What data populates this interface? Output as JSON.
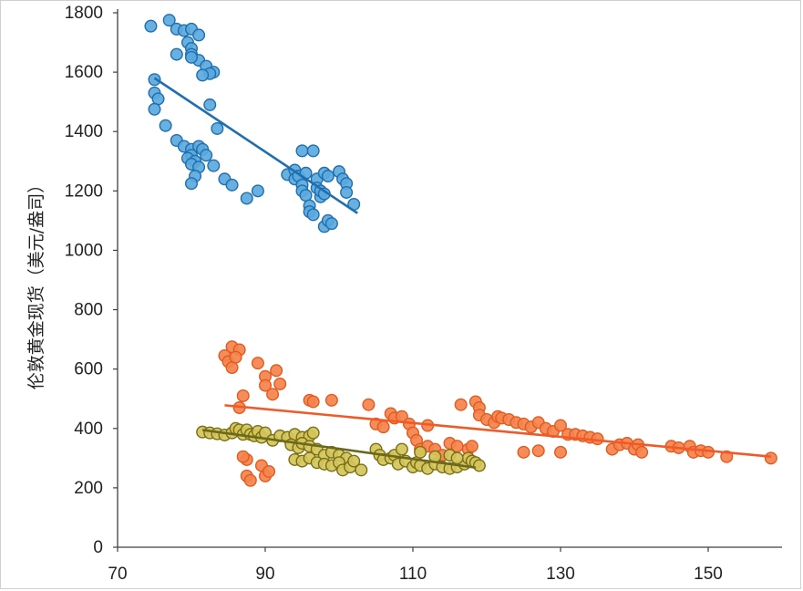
{
  "chart_data": {
    "type": "scatter",
    "title": "",
    "xlabel": "",
    "ylabel": "伦敦黄金现货（美元/盎司）",
    "xlim": [
      70,
      160
    ],
    "ylim": [
      0,
      1800
    ],
    "x_ticks": [
      "70",
      "90",
      "110",
      "130",
      "150"
    ],
    "y_ticks": [
      "0",
      "200",
      "400",
      "600",
      "800",
      "1000",
      "1200",
      "1400",
      "1600",
      "1800"
    ],
    "grid": false,
    "legend": "none",
    "series": [
      {
        "color": "#5aa9dd",
        "edge_color": "#1f6eb0",
        "trend_color": "#1f6eb0",
        "trendline": {
          "x": [
            75,
            102.5
          ],
          "y": [
            1580,
            1125
          ]
        },
        "points": [
          [
            74.5,
            1755
          ],
          [
            77,
            1775
          ],
          [
            78,
            1745
          ],
          [
            79,
            1740
          ],
          [
            80,
            1745
          ],
          [
            81,
            1725
          ],
          [
            79.5,
            1700
          ],
          [
            80,
            1680
          ],
          [
            78,
            1660
          ],
          [
            80,
            1660
          ],
          [
            81,
            1640
          ],
          [
            82,
            1620
          ],
          [
            83,
            1600
          ],
          [
            82.5,
            1595
          ],
          [
            81.5,
            1590
          ],
          [
            80,
            1650
          ],
          [
            75,
            1575
          ],
          [
            75,
            1530
          ],
          [
            75.5,
            1510
          ],
          [
            75,
            1475
          ],
          [
            76.5,
            1420
          ],
          [
            82.5,
            1490
          ],
          [
            83.5,
            1410
          ],
          [
            78,
            1370
          ],
          [
            79,
            1350
          ],
          [
            80,
            1340
          ],
          [
            81,
            1350
          ],
          [
            81.5,
            1340
          ],
          [
            80,
            1320
          ],
          [
            82,
            1320
          ],
          [
            79.5,
            1310
          ],
          [
            80.5,
            1300
          ],
          [
            80,
            1290
          ],
          [
            81,
            1280
          ],
          [
            83,
            1285
          ],
          [
            80.5,
            1250
          ],
          [
            80,
            1225
          ],
          [
            84.5,
            1240
          ],
          [
            85.5,
            1220
          ],
          [
            87.5,
            1175
          ],
          [
            89,
            1200
          ],
          [
            93,
            1255
          ],
          [
            94,
            1270
          ],
          [
            94,
            1240
          ],
          [
            94.5,
            1250
          ],
          [
            95,
            1220
          ],
          [
            95,
            1200
          ],
          [
            95,
            1335
          ],
          [
            96.5,
            1335
          ],
          [
            95.5,
            1185
          ],
          [
            96,
            1150
          ],
          [
            96,
            1130
          ],
          [
            96.5,
            1120
          ],
          [
            95.5,
            1260
          ],
          [
            97,
            1240
          ],
          [
            97,
            1210
          ],
          [
            97.5,
            1180
          ],
          [
            98,
            1260
          ],
          [
            98.5,
            1250
          ],
          [
            97.5,
            1200
          ],
          [
            98,
            1190
          ],
          [
            98,
            1080
          ],
          [
            98.5,
            1100
          ],
          [
            99,
            1090
          ],
          [
            100,
            1265
          ],
          [
            100.5,
            1240
          ],
          [
            101,
            1225
          ],
          [
            101,
            1195
          ],
          [
            102,
            1155
          ]
        ]
      },
      {
        "color": "#f4834c",
        "edge_color": "#e25a1f",
        "trend_color": "#f05a28",
        "trendline": {
          "x": [
            84.5,
            158.5
          ],
          "y": [
            478,
            305
          ]
        },
        "points": [
          [
            84.5,
            645
          ],
          [
            85.5,
            675
          ],
          [
            86.5,
            665
          ],
          [
            85,
            625
          ],
          [
            85.5,
            605
          ],
          [
            86,
            640
          ],
          [
            89,
            620
          ],
          [
            90,
            575
          ],
          [
            90,
            545
          ],
          [
            91.5,
            595
          ],
          [
            91,
            515
          ],
          [
            92,
            550
          ],
          [
            86.5,
            470
          ],
          [
            87,
            510
          ],
          [
            87.5,
            295
          ],
          [
            87,
            305
          ],
          [
            87.5,
            240
          ],
          [
            88,
            225
          ],
          [
            89.5,
            275
          ],
          [
            90,
            240
          ],
          [
            90.5,
            255
          ],
          [
            96,
            495
          ],
          [
            96.5,
            490
          ],
          [
            99,
            495
          ],
          [
            104,
            480
          ],
          [
            105,
            415
          ],
          [
            106,
            405
          ],
          [
            107,
            450
          ],
          [
            107.5,
            435
          ],
          [
            108.5,
            440
          ],
          [
            109.5,
            415
          ],
          [
            110,
            385
          ],
          [
            110.5,
            360
          ],
          [
            111,
            330
          ],
          [
            112,
            410
          ],
          [
            112,
            340
          ],
          [
            113,
            330
          ],
          [
            114,
            310
          ],
          [
            115,
            350
          ],
          [
            116,
            340
          ],
          [
            116.5,
            480
          ],
          [
            117.5,
            330
          ],
          [
            118,
            340
          ],
          [
            118.5,
            490
          ],
          [
            119,
            470
          ],
          [
            119,
            445
          ],
          [
            120,
            430
          ],
          [
            121,
            420
          ],
          [
            121.5,
            440
          ],
          [
            122,
            435
          ],
          [
            123,
            430
          ],
          [
            124,
            420
          ],
          [
            125,
            415
          ],
          [
            126,
            405
          ],
          [
            127,
            420
          ],
          [
            128,
            400
          ],
          [
            129,
            390
          ],
          [
            130,
            410
          ],
          [
            131,
            380
          ],
          [
            132,
            380
          ],
          [
            133,
            375
          ],
          [
            134,
            370
          ],
          [
            135,
            365
          ],
          [
            137,
            330
          ],
          [
            138,
            345
          ],
          [
            139,
            350
          ],
          [
            140,
            330
          ],
          [
            140.5,
            345
          ],
          [
            141,
            320
          ],
          [
            145,
            340
          ],
          [
            146,
            335
          ],
          [
            147.5,
            340
          ],
          [
            148,
            320
          ],
          [
            149,
            325
          ],
          [
            150,
            320
          ],
          [
            152.5,
            305
          ],
          [
            158.5,
            300
          ],
          [
            125,
            320
          ],
          [
            127,
            325
          ],
          [
            130,
            320
          ]
        ]
      },
      {
        "color": "#d2c45a",
        "edge_color": "#7a6e14",
        "trend_color": "#6b6a1c",
        "trendline": {
          "x": [
            81.5,
            118.5
          ],
          "y": [
            395,
            268
          ]
        },
        "points": [
          [
            81.5,
            388
          ],
          [
            82.5,
            385
          ],
          [
            83.5,
            382
          ],
          [
            84.5,
            378
          ],
          [
            85.5,
            385
          ],
          [
            86,
            400
          ],
          [
            86.5,
            395
          ],
          [
            87,
            380
          ],
          [
            87.5,
            395
          ],
          [
            88,
            380
          ],
          [
            88.5,
            375
          ],
          [
            89,
            390
          ],
          [
            89.5,
            370
          ],
          [
            90,
            385
          ],
          [
            91,
            360
          ],
          [
            92,
            375
          ],
          [
            93,
            370
          ],
          [
            94,
            380
          ],
          [
            95,
            370
          ],
          [
            96,
            375
          ],
          [
            96.5,
            385
          ],
          [
            93.5,
            345
          ],
          [
            94.5,
            335
          ],
          [
            95,
            350
          ],
          [
            96,
            340
          ],
          [
            97,
            330
          ],
          [
            98,
            310
          ],
          [
            99,
            320
          ],
          [
            100,
            310
          ],
          [
            101,
            300
          ],
          [
            94,
            295
          ],
          [
            95,
            290
          ],
          [
            96,
            300
          ],
          [
            97,
            285
          ],
          [
            98,
            280
          ],
          [
            99,
            275
          ],
          [
            100,
            285
          ],
          [
            100.5,
            260
          ],
          [
            101.5,
            270
          ],
          [
            102,
            290
          ],
          [
            103,
            260
          ],
          [
            105,
            330
          ],
          [
            105.5,
            310
          ],
          [
            106,
            295
          ],
          [
            107,
            300
          ],
          [
            107.5,
            310
          ],
          [
            108,
            280
          ],
          [
            109,
            290
          ],
          [
            110,
            270
          ],
          [
            110.5,
            285
          ],
          [
            111,
            275
          ],
          [
            112,
            265
          ],
          [
            113,
            280
          ],
          [
            114,
            270
          ],
          [
            115,
            265
          ],
          [
            116,
            270
          ],
          [
            117,
            280
          ],
          [
            117.5,
            300
          ],
          [
            118,
            290
          ],
          [
            118.5,
            285
          ],
          [
            119,
            275
          ],
          [
            108.5,
            330
          ],
          [
            111,
            320
          ],
          [
            113,
            305
          ],
          [
            115,
            310
          ],
          [
            116,
            300
          ]
        ]
      }
    ]
  }
}
